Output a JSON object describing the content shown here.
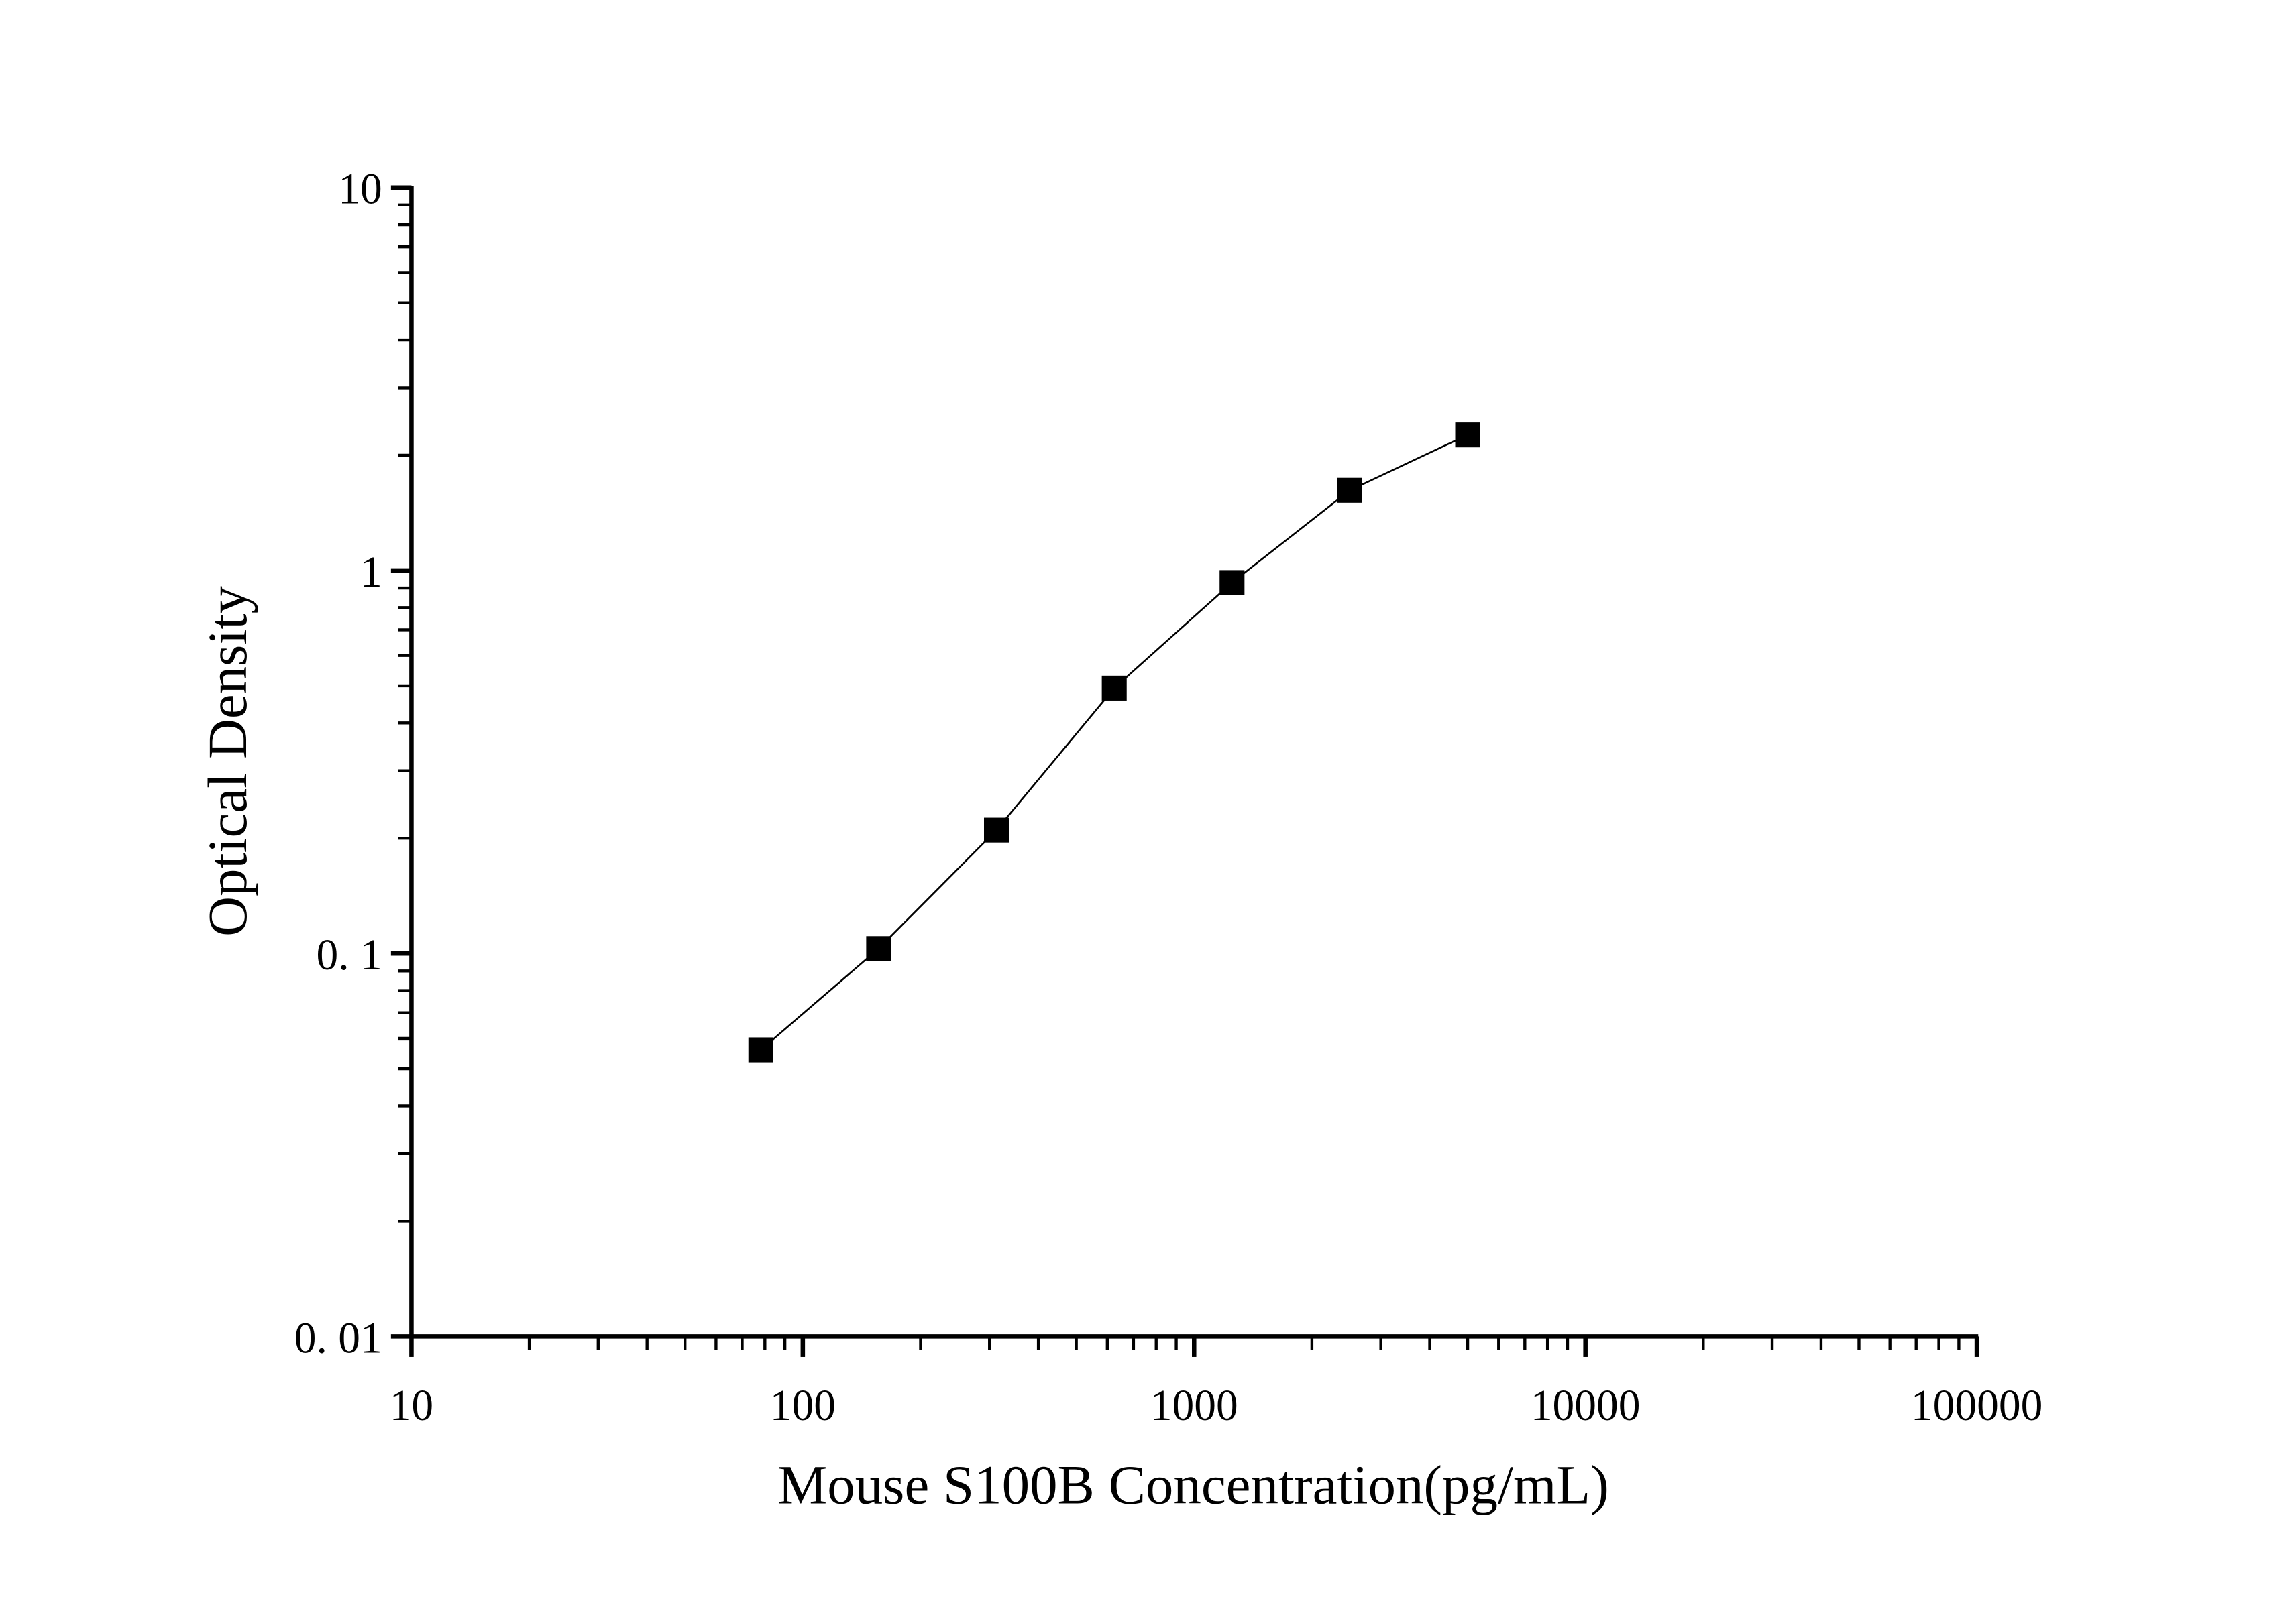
{
  "chart_data": {
    "type": "line",
    "title": "",
    "xlabel": "Mouse S100B Concentration(pg/mL)",
    "ylabel": "Optical Density",
    "xscale": "log",
    "yscale": "log",
    "xlim": [
      10,
      100000
    ],
    "ylim": [
      0.01,
      10
    ],
    "x_ticks": [
      10,
      100,
      1000,
      10000,
      100000
    ],
    "x_tick_labels": [
      "10",
      "100",
      "1000",
      "10000",
      "100000"
    ],
    "y_ticks": [
      0.01,
      0.1,
      1,
      10
    ],
    "y_tick_labels": [
      "0. 01",
      "0. 1",
      "1",
      "10"
    ],
    "grid": false,
    "marker": "square",
    "color": "#000000",
    "series": [
      {
        "x": [
          78.125,
          156.25,
          312.5,
          625,
          1250,
          2500,
          5000
        ],
        "y": [
          0.056,
          0.103,
          0.21,
          0.493,
          0.93,
          1.62,
          2.26
        ]
      }
    ]
  }
}
